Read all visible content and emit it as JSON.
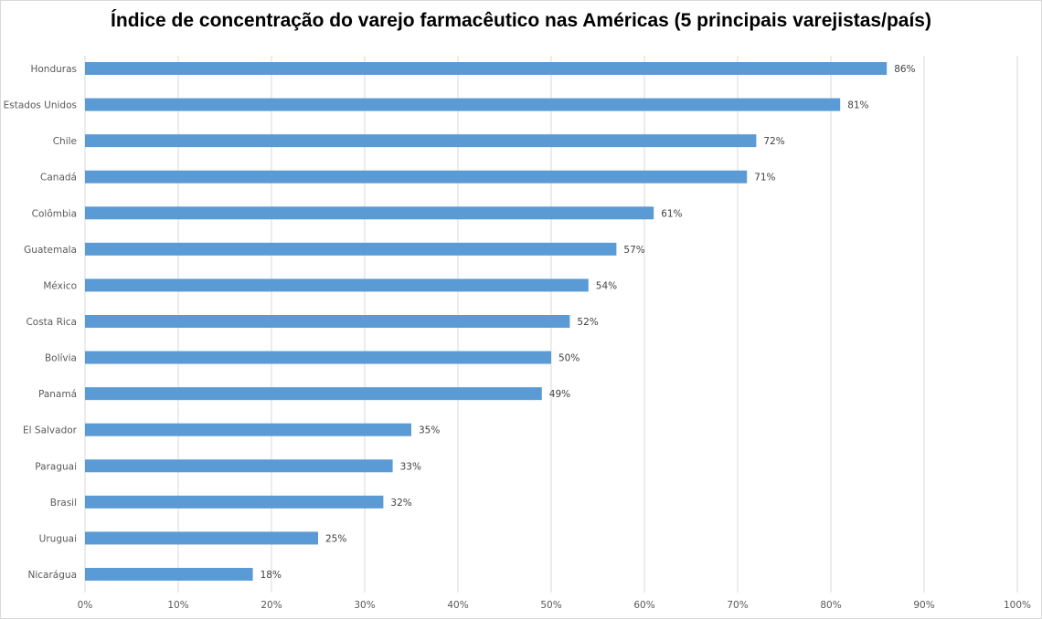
{
  "chart_data": {
    "type": "bar",
    "orientation": "horizontal",
    "title": "Índice de concentração do varejo farmacêutico nas Américas (5 principais varejistas/país)",
    "categories": [
      "Honduras",
      "Estados Unidos",
      "Chile",
      "Canadá",
      "Colômbia",
      "Guatemala",
      "México",
      "Costa Rica",
      "Bolívia",
      "Panamá",
      "El Salvador",
      "Paraguai",
      "Brasil",
      "Uruguai",
      "Nicarágua"
    ],
    "values": [
      86,
      81,
      72,
      71,
      61,
      57,
      54,
      52,
      50,
      49,
      35,
      33,
      32,
      25,
      18
    ],
    "data_labels": [
      "86%",
      "81%",
      "72%",
      "71%",
      "61%",
      "57%",
      "54%",
      "52%",
      "50%",
      "49%",
      "35%",
      "33%",
      "32%",
      "25%",
      "18%"
    ],
    "xlim": [
      0,
      100
    ],
    "x_ticks": [
      "0%",
      "10%",
      "20%",
      "30%",
      "40%",
      "50%",
      "60%",
      "70%",
      "80%",
      "90%",
      "100%"
    ],
    "xlabel": "",
    "ylabel": "",
    "grid": "vertical",
    "legend": "none",
    "bar_color": "#5b9bd5"
  }
}
